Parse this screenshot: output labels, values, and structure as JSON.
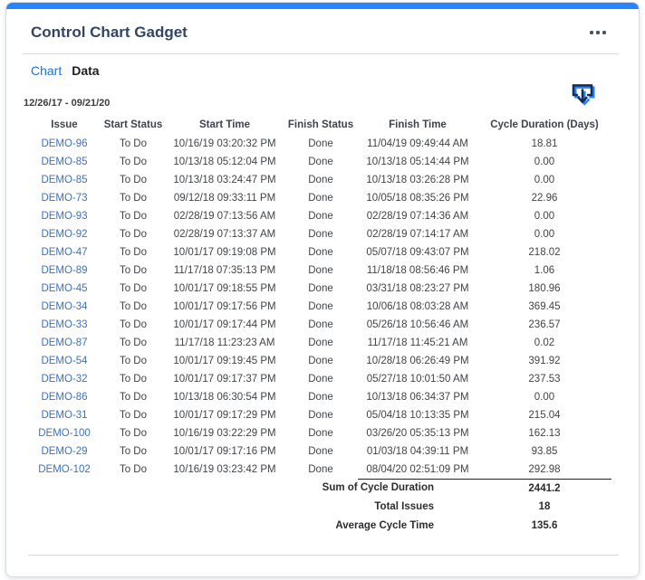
{
  "card": {
    "title": "Control Chart Gadget",
    "tabs": [
      {
        "label": "Chart",
        "active": false
      },
      {
        "label": "Data",
        "active": true
      }
    ],
    "date_range": "12/26/17 - 09/21/20",
    "icons": {
      "menu": "meatball-menu-icon",
      "export": "download-icon"
    }
  },
  "table": {
    "columns": [
      "Issue",
      "Start Status",
      "Start Time",
      "Finish Status",
      "Finish Time",
      "Cycle Duration (Days)"
    ],
    "rows": [
      [
        "DEMO-96",
        "To Do",
        "10/16/19 03:20:32 PM",
        "Done",
        "11/04/19 09:49:44 AM",
        "18.81"
      ],
      [
        "DEMO-85",
        "To Do",
        "10/13/18 05:12:04 PM",
        "Done",
        "10/13/18 05:14:44 PM",
        "0.00"
      ],
      [
        "DEMO-85",
        "To Do",
        "10/13/18 03:24:47 PM",
        "Done",
        "10/13/18 03:26:28 PM",
        "0.00"
      ],
      [
        "DEMO-73",
        "To Do",
        "09/12/18 09:33:11 PM",
        "Done",
        "10/05/18 08:35:26 PM",
        "22.96"
      ],
      [
        "DEMO-93",
        "To Do",
        "02/28/19 07:13:56 AM",
        "Done",
        "02/28/19 07:14:36 AM",
        "0.00"
      ],
      [
        "DEMO-92",
        "To Do",
        "02/28/19 07:13:37 AM",
        "Done",
        "02/28/19 07:14:17 AM",
        "0.00"
      ],
      [
        "DEMO-47",
        "To Do",
        "10/01/17 09:19:08 PM",
        "Done",
        "05/07/18 09:43:07 PM",
        "218.02"
      ],
      [
        "DEMO-89",
        "To Do",
        "11/17/18 07:35:13 PM",
        "Done",
        "11/18/18 08:56:46 PM",
        "1.06"
      ],
      [
        "DEMO-45",
        "To Do",
        "10/01/17 09:18:55 PM",
        "Done",
        "03/31/18 08:23:27 PM",
        "180.96"
      ],
      [
        "DEMO-34",
        "To Do",
        "10/01/17 09:17:56 PM",
        "Done",
        "10/06/18 08:03:28 AM",
        "369.45"
      ],
      [
        "DEMO-33",
        "To Do",
        "10/01/17 09:17:44 PM",
        "Done",
        "05/26/18 10:56:46 AM",
        "236.57"
      ],
      [
        "DEMO-87",
        "To Do",
        "11/17/18 11:23:23 AM",
        "Done",
        "11/17/18 11:45:21 AM",
        "0.02"
      ],
      [
        "DEMO-54",
        "To Do",
        "10/01/17 09:19:45 PM",
        "Done",
        "10/28/18 06:26:49 PM",
        "391.92"
      ],
      [
        "DEMO-32",
        "To Do",
        "10/01/17 09:17:37 PM",
        "Done",
        "05/27/18 10:01:50 AM",
        "237.53"
      ],
      [
        "DEMO-86",
        "To Do",
        "10/13/18 06:30:54 PM",
        "Done",
        "10/13/18 06:34:37 PM",
        "0.00"
      ],
      [
        "DEMO-31",
        "To Do",
        "10/01/17 09:17:29 PM",
        "Done",
        "05/04/18 10:13:35 PM",
        "215.04"
      ],
      [
        "DEMO-100",
        "To Do",
        "10/16/19 03:22:29 PM",
        "Done",
        "03/26/20 05:35:13 PM",
        "162.13"
      ],
      [
        "DEMO-29",
        "To Do",
        "10/01/17 09:17:16 PM",
        "Done",
        "01/03/18 04:39:11 PM",
        "93.85"
      ],
      [
        "DEMO-102",
        "To Do",
        "10/16/19 03:23:42 PM",
        "Done",
        "08/04/20 02:51:09 PM",
        "292.98"
      ]
    ]
  },
  "summary": [
    {
      "label": "Sum of Cycle Duration",
      "value": "2441.2"
    },
    {
      "label": "Total Issues",
      "value": "18"
    },
    {
      "label": "Average Cycle Time",
      "value": "135.6"
    }
  ],
  "colors": {
    "top_bar": "#2684FF",
    "title": "#344563",
    "tab_link": "#1a73e8",
    "issue_link": "#3c72b9",
    "summary_border": "#222222",
    "divider": "#d8dbe0"
  }
}
